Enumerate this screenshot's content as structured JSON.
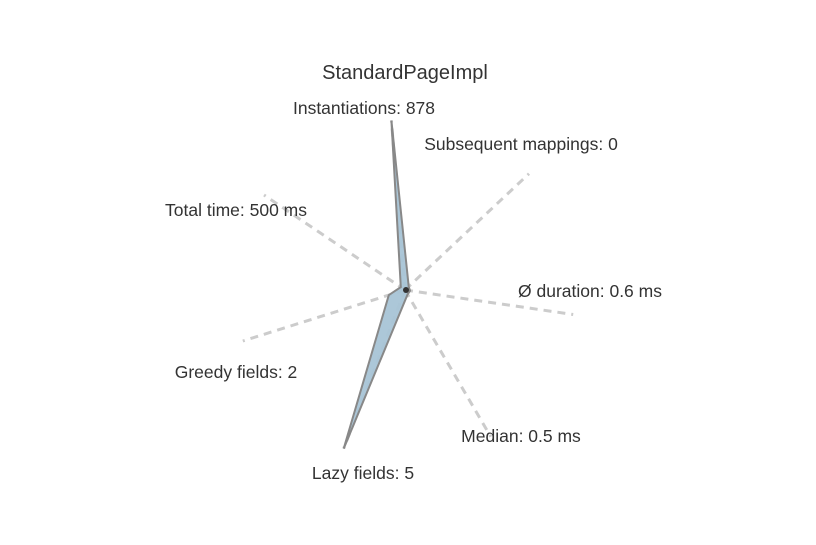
{
  "chart_data": {
    "type": "radar",
    "title": "StandardPageImpl",
    "axes": [
      {
        "key": "instantiations",
        "label": "Instantiations: 878",
        "value": 878
      },
      {
        "key": "subsequent_mappings",
        "label": "Subsequent mappings: 0",
        "value": 0
      },
      {
        "key": "avg_duration",
        "label": "Ø duration: 0.6 ms",
        "value": 0.6
      },
      {
        "key": "median",
        "label": "Median: 0.5 ms",
        "value": 0.5
      },
      {
        "key": "lazy_fields",
        "label": "Lazy fields: 5",
        "value": 5
      },
      {
        "key": "greedy_fields",
        "label": "Greedy fields: 2",
        "value": 2
      },
      {
        "key": "total_time",
        "label": "Total time: 500 ms",
        "value": 500
      }
    ],
    "normalized": [
      1.0,
      0.0,
      0.02,
      0.02,
      1.0,
      0.1,
      0.03
    ],
    "grid": false,
    "legend": "none",
    "colors": {
      "fill": "#a8c4d6",
      "stroke": "#888888",
      "axis": "#cccccc"
    }
  }
}
